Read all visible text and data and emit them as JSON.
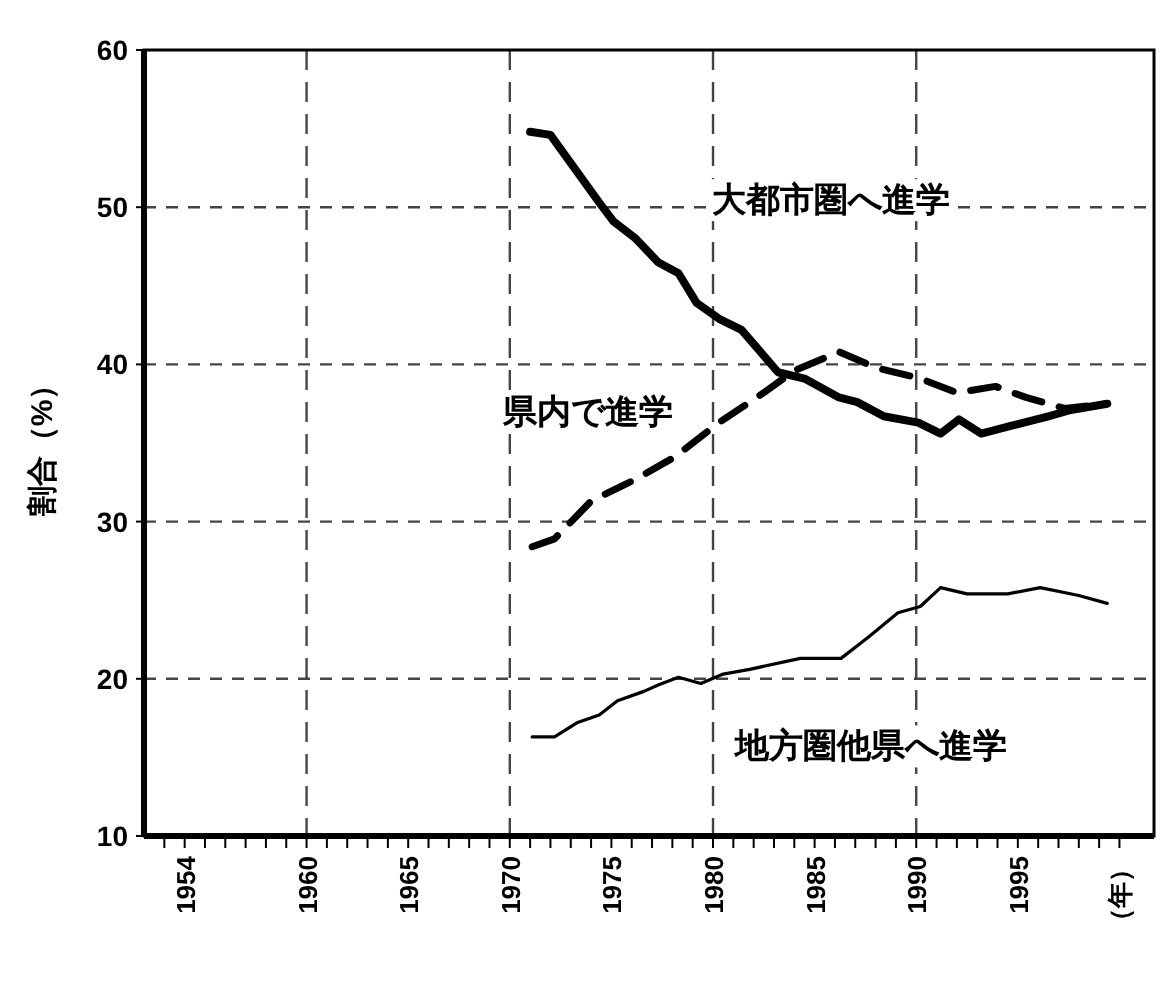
{
  "chart_data": {
    "type": "line",
    "ylabel": "割合（%）",
    "xlim": [
      1952,
      2001.7
    ],
    "ylim": [
      10,
      60
    ],
    "yticks": [
      10,
      20,
      30,
      40,
      50,
      60
    ],
    "xticks": [
      {
        "value": 1953,
        "label": null
      },
      1954,
      {
        "value": 1955,
        "label": null
      },
      {
        "value": 1956,
        "label": null
      },
      {
        "value": 1957,
        "label": null
      },
      {
        "value": 1958,
        "label": null
      },
      {
        "value": 1959,
        "label": null
      },
      1960,
      {
        "value": 1961,
        "label": null
      },
      {
        "value": 1962,
        "label": null
      },
      {
        "value": 1963,
        "label": null
      },
      {
        "value": 1964,
        "label": null
      },
      1965,
      {
        "value": 1966,
        "label": null
      },
      {
        "value": 1967,
        "label": null
      },
      {
        "value": 1968,
        "label": null
      },
      {
        "value": 1969,
        "label": null
      },
      1970,
      {
        "value": 1971,
        "label": null
      },
      {
        "value": 1972,
        "label": null
      },
      {
        "value": 1973,
        "label": null
      },
      {
        "value": 1974,
        "label": null
      },
      1975,
      {
        "value": 1976,
        "label": null
      },
      {
        "value": 1977,
        "label": null
      },
      {
        "value": 1978,
        "label": null
      },
      {
        "value": 1979,
        "label": null
      },
      1980,
      {
        "value": 1981,
        "label": null
      },
      {
        "value": 1982,
        "label": null
      },
      {
        "value": 1983,
        "label": null
      },
      {
        "value": 1984,
        "label": null
      },
      1985,
      {
        "value": 1986,
        "label": null
      },
      {
        "value": 1987,
        "label": null
      },
      {
        "value": 1988,
        "label": null
      },
      {
        "value": 1989,
        "label": null
      },
      1990,
      {
        "value": 1991,
        "label": null
      },
      {
        "value": 1992,
        "label": null
      },
      {
        "value": 1993,
        "label": null
      },
      {
        "value": 1994,
        "label": null
      },
      1995,
      {
        "value": 1996,
        "label": null
      },
      {
        "value": 1997,
        "label": null
      },
      {
        "value": 1998,
        "label": null
      },
      {
        "value": 1999,
        "label": null
      },
      {
        "value": 2000,
        "label": "（年）"
      }
    ],
    "grid": "y",
    "legend": false,
    "ref_lines": [
      {
        "axis": "x",
        "value": 1960,
        "line_style": "dashed"
      },
      {
        "axis": "x",
        "value": 1970,
        "line_style": "dashed"
      },
      {
        "axis": "x",
        "value": 1980,
        "line_style": "dashed"
      },
      {
        "axis": "x",
        "value": 1990,
        "line_style": "dashed"
      }
    ],
    "series": [
      {
        "name": "大都市圏へ進学",
        "color": "#000000",
        "line_style": "solid",
        "x": [
          1971,
          1972,
          1974.4,
          1975.1,
          1976.2,
          1977.3,
          1978.3,
          1979.2,
          1980.3,
          1981.4,
          1983.2,
          1984.5,
          1986.2,
          1987.1,
          1988.4,
          1990.1,
          1991.2,
          1992.1,
          1993.2,
          1994.7,
          1996.5,
          1997.6,
          1999.4
        ],
        "values": [
          54.8,
          54.6,
          50.3,
          49.1,
          48.0,
          46.5,
          45.8,
          43.9,
          42.9,
          42.2,
          39.5,
          39.1,
          37.9,
          37.6,
          36.7,
          36.3,
          35.6,
          36.5,
          35.6,
          36.1,
          36.7,
          37.1,
          37.5
        ]
      },
      {
        "name": "県内で進学",
        "color": "#000000",
        "line_style": "dashed",
        "x": [
          1971.1,
          1972.2,
          1974,
          1976.2,
          1978.1,
          1980.3,
          1982.5,
          1984,
          1986.2,
          1988,
          1990.2,
          1992,
          1993.9,
          1995.4,
          1997.3,
          1999.4
        ],
        "values": [
          28.4,
          28.9,
          31.3,
          32.7,
          34.1,
          36.3,
          38.2,
          39.6,
          40.8,
          39.8,
          39.1,
          38.2,
          38.6,
          37.9,
          37.2,
          37.5
        ]
      },
      {
        "name": "地方圏他県へ進学",
        "color": "#000000",
        "line_style": "solid",
        "x": [
          1971.1,
          1972.2,
          1973.3,
          1974.4,
          1975.3,
          1976.6,
          1977.3,
          1978.3,
          1979.4,
          1980.5,
          1981.8,
          1984.3,
          1986.3,
          1987.7,
          1989.1,
          1990.2,
          1991.2,
          1992.5,
          1994.5,
          1996.1,
          1998,
          1999.4
        ],
        "values": [
          16.3,
          16.3,
          17.2,
          17.7,
          18.6,
          19.2,
          19.6,
          20.1,
          19.7,
          20.3,
          20.6,
          21.3,
          21.3,
          22.7,
          24.2,
          24.6,
          25.8,
          25.4,
          25.4,
          25.8,
          25.3,
          24.8
        ]
      }
    ]
  }
}
